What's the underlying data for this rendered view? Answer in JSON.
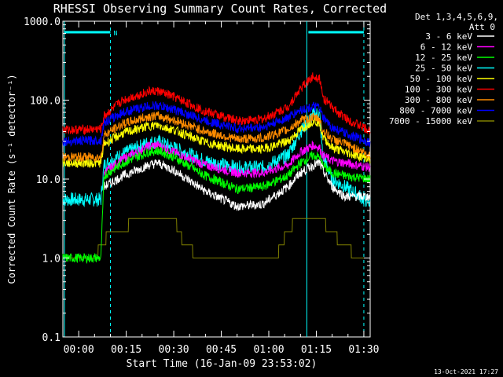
{
  "chart_data": {
    "type": "line",
    "title": "RHESSI Observing Summary Count Rates, Corrected",
    "xlabel": "Start Time (16-Jan-09 23:53:02)",
    "ylabel": "Corrected Count Rate (s⁻¹ detector⁻¹)",
    "ylog": true,
    "ylim": [
      0.1,
      1000
    ],
    "xlim_minutes": [
      -5,
      92
    ],
    "x_ticks": [
      {
        "t": 0,
        "label": "00:00"
      },
      {
        "t": 15,
        "label": "00:15"
      },
      {
        "t": 30,
        "label": "00:30"
      },
      {
        "t": 45,
        "label": "00:45"
      },
      {
        "t": 60,
        "label": "01:00"
      },
      {
        "t": 75,
        "label": "01:15"
      },
      {
        "t": 90,
        "label": "01:30"
      }
    ],
    "y_ticks": [
      {
        "v": 1000,
        "label": "1000.0"
      },
      {
        "v": 100,
        "label": "100.0"
      },
      {
        "v": 10,
        "label": "10.0"
      },
      {
        "v": 1,
        "label": "1.0"
      },
      {
        "v": 0.1,
        "label": "0.1"
      }
    ],
    "legend": {
      "header": [
        "Det 1,3,4,5,6,9,",
        "Att 0"
      ],
      "placement": "right"
    },
    "series": [
      {
        "name": "3 - 6 keV",
        "color": "#ffffff",
        "x": [
          -5,
          7,
          8,
          14,
          22,
          25,
          30,
          40,
          50,
          58,
          66,
          70,
          74,
          76,
          77,
          80,
          84,
          92
        ],
        "y": [
          null,
          null,
          8,
          11,
          15,
          16,
          13,
          7,
          4.5,
          4.8,
          8,
          12,
          15,
          16,
          13,
          8,
          6,
          6
        ]
      },
      {
        "name": "6 - 12 keV",
        "color": "#ff00ff",
        "x": [
          -5,
          7,
          8,
          14,
          22,
          25,
          30,
          40,
          50,
          58,
          66,
          70,
          74,
          76,
          77,
          80,
          84,
          92
        ],
        "y": [
          null,
          null,
          12,
          18,
          26,
          27,
          22,
          15,
          12,
          12,
          15,
          22,
          27,
          25,
          20,
          17,
          16,
          14
        ]
      },
      {
        "name": "12 - 25 keV",
        "color": "#00ff00",
        "x": [
          -5,
          7,
          8,
          14,
          22,
          25,
          30,
          40,
          50,
          58,
          66,
          70,
          74,
          76,
          77,
          80,
          84,
          92
        ],
        "y": [
          1,
          1,
          11,
          16,
          22,
          23,
          19,
          11,
          7.5,
          8,
          11,
          16,
          20,
          19,
          15,
          12,
          11,
          10
        ]
      },
      {
        "name": "25 - 50 keV",
        "color": "#00ffff",
        "x": [
          -5,
          7,
          8,
          14,
          22,
          25,
          30,
          40,
          50,
          58,
          66,
          70,
          74,
          76,
          77,
          80,
          84,
          92
        ],
        "y": [
          5.5,
          5.5,
          15,
          21,
          29,
          30,
          25,
          17,
          14,
          14,
          20,
          40,
          65,
          70,
          20,
          10,
          8,
          5
        ]
      },
      {
        "name": "50 - 100 keV",
        "color": "#ffff00",
        "x": [
          -5,
          7,
          8,
          14,
          22,
          25,
          30,
          40,
          50,
          58,
          66,
          70,
          74,
          76,
          77,
          80,
          84,
          92
        ],
        "y": [
          16,
          16,
          28,
          38,
          47,
          48,
          42,
          29,
          24,
          24,
          30,
          42,
          55,
          52,
          35,
          25,
          22,
          18
        ]
      },
      {
        "name": "100 - 300 keV",
        "color": "#ff0000",
        "x": [
          -5,
          7,
          8,
          14,
          22,
          25,
          30,
          40,
          50,
          58,
          66,
          70,
          74,
          76,
          77,
          80,
          84,
          92
        ],
        "y": [
          42,
          43,
          63,
          100,
          128,
          130,
          110,
          72,
          55,
          57,
          82,
          140,
          200,
          195,
          110,
          80,
          60,
          40
        ]
      },
      {
        "name": "300 - 800 keV",
        "color": "#ff8c00",
        "x": [
          -5,
          7,
          8,
          14,
          22,
          25,
          30,
          40,
          50,
          58,
          66,
          70,
          74,
          76,
          77,
          80,
          84,
          92
        ],
        "y": [
          19,
          19,
          36,
          50,
          62,
          63,
          56,
          40,
          32,
          33,
          42,
          55,
          60,
          58,
          42,
          32,
          28,
          20
        ]
      },
      {
        "name": "800 - 7000 keV",
        "color": "#0000ff",
        "x": [
          -5,
          7,
          8,
          14,
          22,
          25,
          30,
          40,
          50,
          58,
          66,
          70,
          74,
          76,
          77,
          80,
          84,
          92
        ],
        "y": [
          30,
          31,
          52,
          70,
          84,
          85,
          76,
          55,
          44,
          45,
          60,
          75,
          82,
          80,
          60,
          45,
          38,
          29
        ]
      },
      {
        "name": "7000 - 15000 keV",
        "color": "#808000",
        "x": [
          -5,
          5,
          6,
          8,
          9,
          15,
          18,
          20,
          25,
          30,
          33,
          38,
          42,
          60,
          63,
          66,
          70,
          72,
          75,
          78,
          80,
          84,
          87,
          88,
          92
        ],
        "y": [
          1,
          1,
          1.2,
          1.5,
          2,
          2.5,
          3,
          3.6,
          3.8,
          3.2,
          1.6,
          1,
          1,
          1,
          1.2,
          2.2,
          3.6,
          3.8,
          3.4,
          2.6,
          2,
          1.5,
          1.1,
          1,
          1
        ]
      }
    ],
    "markers": {
      "vertical_solid": [
        -5,
        72
      ],
      "vertical_dashed": [
        10,
        90
      ],
      "top_bars": [
        [
          -5,
          10
        ],
        [
          72,
          90
        ]
      ],
      "top_label": {
        "t": 11,
        "text": "N"
      }
    }
  },
  "timestamp": "13-Oct-2021 17:27"
}
